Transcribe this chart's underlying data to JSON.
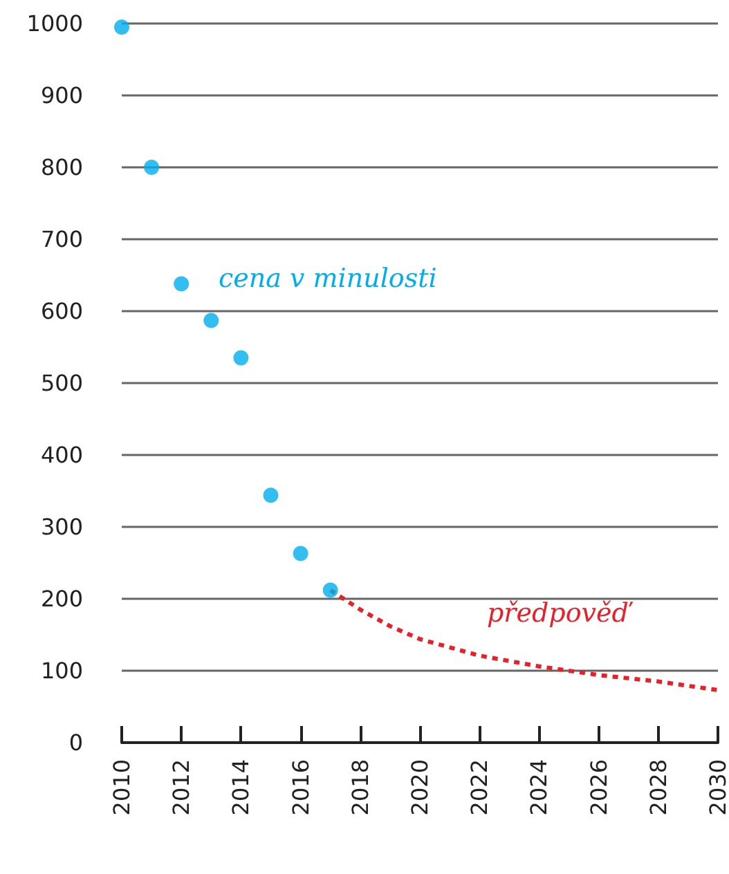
{
  "chart_data": {
    "type": "scatter",
    "xlim": [
      2010,
      2030
    ],
    "xticks": [
      2010,
      2012,
      2014,
      2016,
      2018,
      2020,
      2022,
      2024,
      2026,
      2028,
      2030
    ],
    "ylim": [
      0,
      1000
    ],
    "yticks": [
      0,
      100,
      200,
      300,
      400,
      500,
      600,
      700,
      800,
      900,
      1000
    ],
    "grid": "y",
    "marker": "circle",
    "series": [
      {
        "name": "cena v minulosti",
        "color": "#00aeef",
        "x": [
          2010,
          2011,
          2012,
          2013,
          2014,
          2015,
          2016,
          2017
        ],
        "values": [
          995,
          800,
          638,
          587,
          535,
          344,
          263,
          212
        ]
      },
      {
        "name": "předpověď",
        "type": "line",
        "color": "#e8202a",
        "line_style": "dashed",
        "marker": "none",
        "x": [
          2017,
          2018,
          2019,
          2020,
          2022,
          2024,
          2026,
          2028,
          2030
        ],
        "values": [
          212,
          185,
          162,
          144,
          121,
          106,
          94,
          85,
          73
        ]
      }
    ]
  }
}
